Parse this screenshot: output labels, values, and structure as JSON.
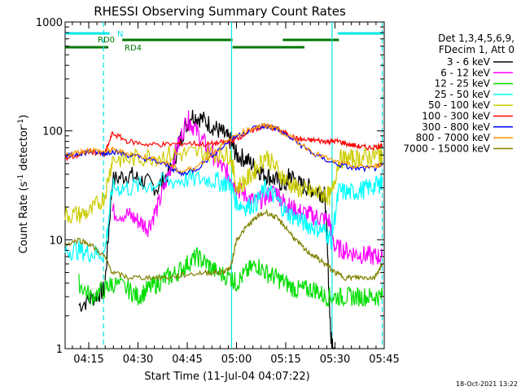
{
  "chart_data": {
    "type": "line",
    "title": "RHESSI Observing Summary Count Rates",
    "xlabel": "Start Time (11-Jul-04 04:07:22)",
    "ylabel_main": "Count Rate (s",
    "ylabel_sup1": "-1",
    "ylabel_mid": " detector",
    "ylabel_sup2": "-1",
    "ylabel_end": ")",
    "y_scale": "log",
    "ylim": [
      1,
      1000
    ],
    "xlim_minutes": [
      4.13,
      5.75
    ],
    "x_ticks": [
      {
        "label": "04:15",
        "m": 4.25
      },
      {
        "label": "04:30",
        "m": 4.5
      },
      {
        "label": "04:45",
        "m": 4.75
      },
      {
        "label": "05:00",
        "m": 5.0
      },
      {
        "label": "05:15",
        "m": 5.25
      },
      {
        "label": "05:30",
        "m": 5.5
      },
      {
        "label": "05:45",
        "m": 5.75
      }
    ],
    "y_ticks": [
      {
        "label": "1",
        "v": 1
      },
      {
        "label": "10",
        "v": 10
      },
      {
        "label": "100",
        "v": 100
      },
      {
        "label": "1000",
        "v": 1000
      }
    ],
    "legend_header": [
      "Det 1,3,4,5,6,9,",
      "FDecim 1, Att 0"
    ],
    "legend_placement": "top-right-outside",
    "footer_date": "18-Oct-2021 13:22",
    "flags": [
      {
        "label": "N",
        "color": "#00e5e5",
        "segments": [
          [
            4.13,
            4.355
          ],
          [
            5.515,
            5.745
          ]
        ]
      },
      {
        "label": "RD0",
        "color": "#007700",
        "segments": [
          [
            4.42,
            4.98
          ],
          [
            5.235,
            5.52
          ]
        ]
      },
      {
        "label": "RD4",
        "color": "#007700",
        "segments": [
          [
            4.13,
            4.35
          ],
          [
            4.98,
            5.345
          ]
        ]
      }
    ],
    "vlines": [
      {
        "m": 4.325,
        "style": "dashed",
        "color": "#00e5e5"
      },
      {
        "m": 4.975,
        "style": "solid",
        "color": "#00e5e5"
      },
      {
        "m": 5.485,
        "style": "solid",
        "color": "#00e5e5"
      },
      {
        "m": 5.74,
        "style": "dashed",
        "color": "#00e5e5"
      }
    ],
    "series": [
      {
        "name": "3 - 6 keV",
        "color": "#000000",
        "x": [
          4.2,
          4.28,
          4.33,
          4.37,
          4.45,
          4.52,
          4.6,
          4.67,
          4.72,
          4.77,
          4.82,
          4.88,
          4.93,
          4.97,
          5.0,
          5.05,
          5.1,
          5.15,
          5.2,
          5.25,
          5.27,
          5.32,
          5.37,
          5.42,
          5.45,
          5.48,
          5.5
        ],
        "y": [
          2.5,
          3.0,
          3.5,
          35,
          40,
          35,
          30,
          45,
          90,
          140,
          130,
          110,
          95,
          80,
          60,
          55,
          45,
          40,
          35,
          32,
          40,
          32,
          30,
          28,
          25,
          1.2,
          1
        ]
      },
      {
        "name": "6 - 12 keV",
        "color": "#ff00ff",
        "x": [
          4.37,
          4.45,
          4.5,
          4.55,
          4.6,
          4.65,
          4.7,
          4.75,
          4.78,
          4.83,
          4.88,
          4.93,
          4.97,
          5.0,
          5.05,
          5.1,
          5.15,
          5.2,
          5.24,
          5.27,
          5.32,
          5.37,
          5.42,
          5.47,
          5.5,
          5.55,
          5.6,
          5.65,
          5.7,
          5.74
        ],
        "y": [
          18,
          17,
          15,
          13,
          20,
          38,
          70,
          130,
          110,
          80,
          60,
          45,
          38,
          30,
          25,
          22,
          25,
          28,
          22,
          20,
          18,
          17,
          16,
          15,
          8.5,
          8,
          7.5,
          7.2,
          7,
          7
        ]
      },
      {
        "name": "12 - 25 keV",
        "color": "#00dd00",
        "x": [
          4.2,
          4.26,
          4.33,
          4.37,
          4.45,
          4.5,
          4.55,
          4.6,
          4.65,
          4.7,
          4.75,
          4.8,
          4.85,
          4.9,
          4.97,
          5.0,
          5.05,
          5.1,
          5.15,
          5.2,
          5.25,
          5.3,
          5.35,
          5.4,
          5.45,
          5.5,
          5.55,
          5.6,
          5.65,
          5.7,
          5.74
        ],
        "y": [
          4,
          3,
          3.5,
          4,
          3.5,
          3,
          3.5,
          4,
          4.5,
          5,
          6,
          7,
          6,
          5,
          4.5,
          4,
          5,
          6,
          5,
          4.5,
          4,
          3.5,
          3.5,
          3.5,
          3,
          3,
          3,
          3,
          3,
          3,
          3
        ]
      },
      {
        "name": "25 - 50 keV",
        "color": "#00ffff",
        "x": [
          4.13,
          4.2,
          4.26,
          4.33,
          4.37,
          4.45,
          4.55,
          4.65,
          4.75,
          4.85,
          4.92,
          4.97,
          5.0,
          5.05,
          5.1,
          5.15,
          5.2,
          5.25,
          5.3,
          5.35,
          5.4,
          5.45,
          5.48,
          5.52,
          5.57,
          5.62,
          5.67,
          5.72,
          5.74
        ],
        "y": [
          8,
          8,
          7.5,
          7.5,
          30,
          30,
          32,
          34,
          36,
          36,
          34,
          32,
          22,
          20,
          22,
          30,
          24,
          18,
          16,
          14,
          13,
          12,
          10,
          28,
          27,
          28,
          30,
          32,
          34
        ]
      },
      {
        "name": "50 - 100 keV",
        "color": "#cccc00",
        "x": [
          4.13,
          4.2,
          4.26,
          4.33,
          4.37,
          4.45,
          4.55,
          4.65,
          4.75,
          4.85,
          4.92,
          4.97,
          5.0,
          5.05,
          5.1,
          5.15,
          5.2,
          5.25,
          5.3,
          5.35,
          5.4,
          5.45,
          5.48,
          5.52,
          5.57,
          5.62,
          5.67,
          5.72,
          5.74
        ],
        "y": [
          17,
          17,
          18,
          25,
          55,
          55,
          58,
          60,
          62,
          63,
          62,
          60,
          30,
          35,
          45,
          60,
          45,
          35,
          30,
          28,
          27,
          26,
          25,
          55,
          55,
          56,
          58,
          60,
          62
        ]
      },
      {
        "name": "100 - 300 keV",
        "color": "#ff0000",
        "x": [
          4.13,
          4.2,
          4.26,
          4.33,
          4.37,
          4.45,
          4.55,
          4.65,
          4.75,
          4.85,
          4.92,
          4.97,
          5.0,
          5.05,
          5.1,
          5.15,
          5.2,
          5.25,
          5.3,
          5.35,
          5.4,
          5.45,
          5.48,
          5.52,
          5.57,
          5.62,
          5.67,
          5.72,
          5.74
        ],
        "y": [
          55,
          60,
          65,
          60,
          95,
          80,
          75,
          75,
          77,
          75,
          78,
          80,
          85,
          95,
          105,
          110,
          105,
          95,
          85,
          82,
          82,
          80,
          80,
          80,
          75,
          72,
          70,
          72,
          75
        ]
      },
      {
        "name": "300 - 800 keV",
        "color": "#0000ff",
        "x": [
          4.13,
          4.2,
          4.26,
          4.33,
          4.37,
          4.45,
          4.55,
          4.65,
          4.72,
          4.8,
          4.9,
          5.0,
          5.1,
          5.15,
          5.2,
          5.3,
          5.4,
          5.5,
          5.6,
          5.7,
          5.74
        ],
        "y": [
          58,
          62,
          65,
          62,
          65,
          60,
          55,
          48,
          40,
          45,
          65,
          90,
          108,
          110,
          105,
          80,
          60,
          50,
          45,
          45,
          48
        ]
      },
      {
        "name": "800 - 7000 keV",
        "color": "#ff9900",
        "x": [
          4.13,
          4.2,
          4.26,
          4.33,
          4.37,
          4.45,
          4.55,
          4.65,
          4.72,
          4.8,
          4.9,
          5.0,
          5.1,
          5.15,
          5.2,
          5.3,
          5.4,
          5.5,
          5.6,
          5.7,
          5.74
        ],
        "y": [
          60,
          64,
          67,
          64,
          67,
          62,
          57,
          50,
          42,
          47,
          67,
          92,
          110,
          112,
          107,
          82,
          62,
          52,
          47,
          47,
          50
        ]
      },
      {
        "name": "7000 - 15000 keV",
        "color": "#808000",
        "x": [
          4.13,
          4.2,
          4.26,
          4.33,
          4.37,
          4.45,
          4.55,
          4.65,
          4.75,
          4.85,
          4.92,
          4.97,
          5.0,
          5.05,
          5.1,
          5.15,
          5.2,
          5.25,
          5.3,
          5.35,
          5.4,
          5.45,
          5.5,
          5.55,
          5.6,
          5.65,
          5.7,
          5.74
        ],
        "y": [
          9,
          10,
          9,
          7,
          5,
          4.5,
          4.5,
          4.5,
          4.8,
          5,
          5,
          5.5,
          10,
          13,
          16,
          18,
          16,
          13,
          10,
          8,
          7,
          6,
          5,
          4.5,
          4.5,
          4.5,
          4.5,
          6
        ]
      }
    ]
  }
}
